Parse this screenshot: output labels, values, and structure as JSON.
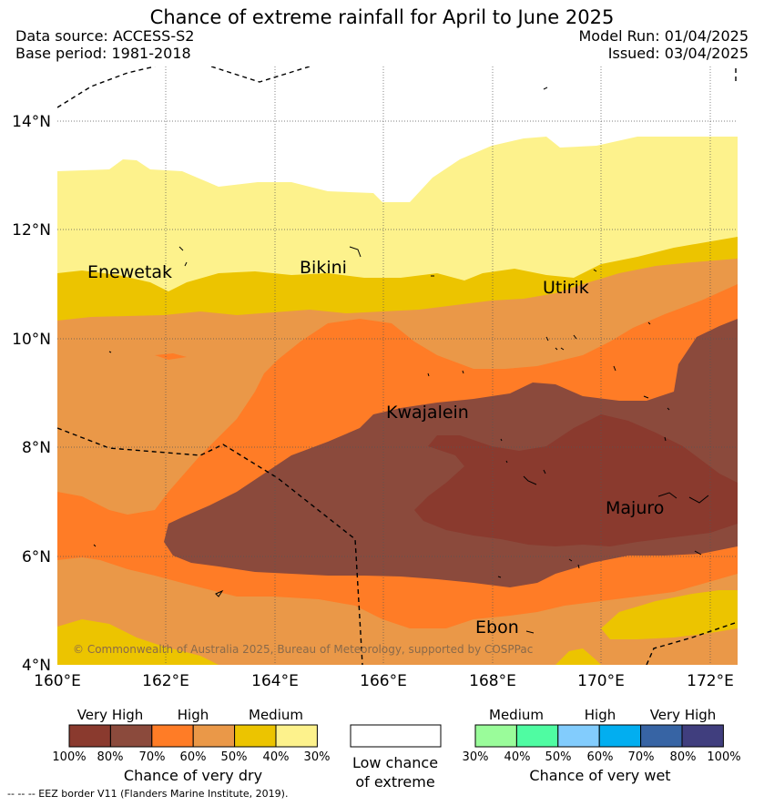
{
  "title": "Chance of extreme rainfall for April to June 2025",
  "header": {
    "data_source": "Data source: ACCESS-S2",
    "base_period": "Base period: 1981-2018",
    "model_run": "Model Run: 01/04/2025",
    "issued": "Issued: 03/04/2025"
  },
  "map": {
    "lat_labels": [
      "14°N",
      "12°N",
      "10°N",
      "8°N",
      "6°N",
      "4°N"
    ],
    "lon_labels": [
      "160°E",
      "162°E",
      "164°E",
      "166°E",
      "168°E",
      "170°E",
      "172°E"
    ],
    "places": [
      "Enewetak",
      "Bikini",
      "Utirik",
      "Kwajalein",
      "Majuro",
      "Ebon"
    ],
    "copyright": "© Commonwealth of Australia 2025, Bureau of Meteorology, supported by COSPPac"
  },
  "legend_dry": {
    "headings": [
      "Very High",
      "High",
      "Medium"
    ],
    "ticks": [
      "100%",
      "80%",
      "70%",
      "60%",
      "50%",
      "40%",
      "30%"
    ],
    "colors": [
      "#8a3a2e",
      "#8b4a3c",
      "#ff7c26",
      "#ea9848",
      "#ecc400",
      "#fdf28c"
    ],
    "caption": "Chance of very dry"
  },
  "legend_low": {
    "caption_line1": "Low chance",
    "caption_line2": "of extreme"
  },
  "legend_wet": {
    "headings": [
      "Medium",
      "High",
      "Very High"
    ],
    "ticks": [
      "30%",
      "40%",
      "50%",
      "60%",
      "70%",
      "80%",
      "100%"
    ],
    "colors": [
      "#9afc9a",
      "#4ffca2",
      "#82ccfd",
      "#02aef0",
      "#3764a4",
      "#403e7e"
    ],
    "caption": "Chance of very wet"
  },
  "footnote": "-- -- -- EEZ border V11 (Flanders Marine Institute, 2019)."
}
